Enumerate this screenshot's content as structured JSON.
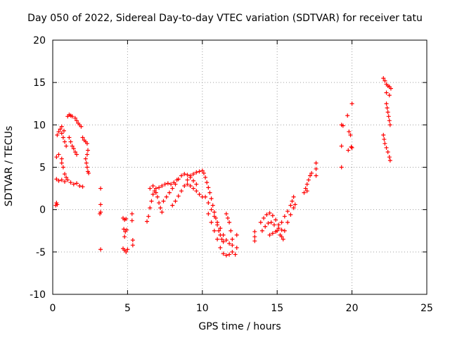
{
  "chart_data": {
    "type": "scatter",
    "title": "Day 050 of 2022, Sidereal Day-to-day VTEC variation (SDTVAR) for receiver tatu",
    "xlabel": "GPS time / hours",
    "ylabel": "SDTVAR / TECUs",
    "xlim": [
      0,
      25
    ],
    "ylim": [
      -10,
      20
    ],
    "xticks": [
      0,
      5,
      10,
      15,
      20,
      25
    ],
    "yticks": [
      -10,
      -5,
      0,
      5,
      10,
      15,
      20
    ],
    "grid": true,
    "marker": "plus",
    "color": "#ff0000",
    "series": [
      {
        "name": "SDTVAR",
        "points": [
          [
            0.2,
            0.5
          ],
          [
            0.25,
            0.8
          ],
          [
            0.3,
            0.6
          ],
          [
            0.25,
            3.6
          ],
          [
            0.4,
            3.4
          ],
          [
            0.6,
            3.5
          ],
          [
            0.8,
            3.3
          ],
          [
            1.0,
            3.5
          ],
          [
            1.2,
            3.2
          ],
          [
            1.4,
            3.0
          ],
          [
            1.6,
            3.1
          ],
          [
            1.8,
            2.8
          ],
          [
            2.0,
            2.7
          ],
          [
            0.25,
            6.2
          ],
          [
            0.4,
            6.5
          ],
          [
            0.6,
            5.5
          ],
          [
            0.7,
            5.0
          ],
          [
            0.8,
            4.2
          ],
          [
            0.9,
            3.8
          ],
          [
            0.6,
            6.0
          ],
          [
            0.3,
            8.8
          ],
          [
            0.4,
            9.2
          ],
          [
            0.5,
            9.5
          ],
          [
            0.6,
            9.0
          ],
          [
            0.7,
            8.5
          ],
          [
            0.8,
            8.0
          ],
          [
            0.9,
            7.5
          ],
          [
            0.6,
            9.8
          ],
          [
            0.75,
            9.3
          ],
          [
            1.0,
            11.0
          ],
          [
            1.1,
            11.2
          ],
          [
            1.2,
            11.1
          ],
          [
            1.3,
            11.0
          ],
          [
            1.5,
            10.8
          ],
          [
            1.6,
            10.5
          ],
          [
            1.7,
            10.2
          ],
          [
            1.8,
            10.0
          ],
          [
            1.9,
            9.8
          ],
          [
            1.1,
            8.5
          ],
          [
            1.2,
            8.0
          ],
          [
            1.3,
            7.5
          ],
          [
            1.4,
            7.2
          ],
          [
            1.5,
            6.8
          ],
          [
            1.6,
            6.5
          ],
          [
            2.0,
            8.5
          ],
          [
            2.1,
            8.2
          ],
          [
            2.2,
            8.0
          ],
          [
            2.3,
            7.8
          ],
          [
            2.35,
            7.0
          ],
          [
            2.3,
            6.5
          ],
          [
            2.2,
            6.0
          ],
          [
            2.25,
            5.5
          ],
          [
            2.3,
            5.0
          ],
          [
            2.35,
            4.5
          ],
          [
            2.4,
            4.3
          ],
          [
            3.2,
            2.5
          ],
          [
            3.2,
            0.6
          ],
          [
            3.2,
            -0.3
          ],
          [
            3.15,
            -0.5
          ],
          [
            3.2,
            -4.7
          ],
          [
            4.7,
            -1.0
          ],
          [
            4.8,
            -1.2
          ],
          [
            4.9,
            -1.1
          ],
          [
            4.75,
            -2.3
          ],
          [
            4.85,
            -2.6
          ],
          [
            4.95,
            -2.4
          ],
          [
            4.8,
            -3.2
          ],
          [
            4.7,
            -4.6
          ],
          [
            4.8,
            -4.8
          ],
          [
            4.9,
            -5.0
          ],
          [
            5.0,
            -4.7
          ],
          [
            5.3,
            -0.5
          ],
          [
            5.3,
            -1.3
          ],
          [
            5.35,
            -3.6
          ],
          [
            5.35,
            -4.2
          ],
          [
            6.3,
            -1.4
          ],
          [
            6.4,
            -0.8
          ],
          [
            6.5,
            0.2
          ],
          [
            6.6,
            1.0
          ],
          [
            6.7,
            1.8
          ],
          [
            6.8,
            2.2
          ],
          [
            6.9,
            2.0
          ],
          [
            7.0,
            1.5
          ],
          [
            7.1,
            0.8
          ],
          [
            7.2,
            0.2
          ],
          [
            7.3,
            -0.3
          ],
          [
            6.5,
            2.5
          ],
          [
            6.7,
            2.8
          ],
          [
            6.9,
            2.5
          ],
          [
            7.1,
            2.6
          ],
          [
            7.3,
            2.8
          ],
          [
            7.5,
            3.0
          ],
          [
            7.7,
            3.1
          ],
          [
            7.9,
            3.0
          ],
          [
            8.1,
            3.2
          ],
          [
            8.3,
            3.5
          ],
          [
            7.4,
            1.0
          ],
          [
            7.6,
            1.5
          ],
          [
            7.8,
            2.0
          ],
          [
            8.0,
            2.5
          ],
          [
            8.2,
            3.0
          ],
          [
            8.4,
            3.6
          ],
          [
            8.6,
            4.0
          ],
          [
            8.8,
            4.2
          ],
          [
            9.0,
            4.1
          ],
          [
            9.2,
            3.8
          ],
          [
            9.4,
            3.4
          ],
          [
            9.6,
            3.0
          ],
          [
            8.0,
            0.5
          ],
          [
            8.2,
            1.0
          ],
          [
            8.4,
            1.6
          ],
          [
            8.6,
            2.2
          ],
          [
            8.8,
            2.8
          ],
          [
            9.0,
            3.0
          ],
          [
            9.2,
            2.8
          ],
          [
            9.4,
            2.5
          ],
          [
            9.6,
            2.2
          ],
          [
            9.8,
            1.8
          ],
          [
            10.0,
            1.5
          ],
          [
            9.0,
            3.5
          ],
          [
            9.2,
            4.0
          ],
          [
            9.4,
            4.2
          ],
          [
            9.6,
            4.4
          ],
          [
            9.8,
            4.5
          ],
          [
            10.0,
            4.6
          ],
          [
            10.1,
            4.3
          ],
          [
            10.2,
            3.8
          ],
          [
            10.3,
            3.2
          ],
          [
            10.4,
            2.6
          ],
          [
            10.5,
            2.0
          ],
          [
            10.6,
            1.3
          ],
          [
            10.7,
            0.5
          ],
          [
            10.8,
            -0.3
          ],
          [
            10.9,
            -1.0
          ],
          [
            11.0,
            -1.8
          ],
          [
            11.1,
            -2.5
          ],
          [
            11.2,
            -3.0
          ],
          [
            11.3,
            -3.5
          ],
          [
            11.4,
            -3.8
          ],
          [
            10.2,
            1.5
          ],
          [
            10.4,
            0.8
          ],
          [
            10.6,
            0.0
          ],
          [
            10.8,
            -0.8
          ],
          [
            11.0,
            -1.5
          ],
          [
            11.2,
            -2.2
          ],
          [
            11.4,
            -3.0
          ],
          [
            11.6,
            -3.6
          ],
          [
            11.8,
            -4.0
          ],
          [
            12.0,
            -4.2
          ],
          [
            10.4,
            -0.5
          ],
          [
            10.6,
            -1.5
          ],
          [
            10.8,
            -2.5
          ],
          [
            11.0,
            -3.5
          ],
          [
            11.2,
            -4.5
          ],
          [
            11.4,
            -5.2
          ],
          [
            11.6,
            -5.4
          ],
          [
            11.8,
            -5.3
          ],
          [
            12.0,
            -5.0
          ],
          [
            11.7,
            -1.0
          ],
          [
            11.8,
            -1.5
          ],
          [
            11.9,
            -2.5
          ],
          [
            12.0,
            -3.5
          ],
          [
            11.6,
            -0.5
          ],
          [
            12.3,
            -3.0
          ],
          [
            12.3,
            -4.5
          ],
          [
            12.2,
            -5.3
          ],
          [
            13.5,
            -2.6
          ],
          [
            13.5,
            -3.2
          ],
          [
            13.5,
            -3.7
          ],
          [
            13.9,
            -1.5
          ],
          [
            14.1,
            -1.0
          ],
          [
            14.3,
            -0.6
          ],
          [
            14.5,
            -0.4
          ],
          [
            14.7,
            -0.7
          ],
          [
            14.9,
            -1.2
          ],
          [
            15.1,
            -1.8
          ],
          [
            15.3,
            -2.4
          ],
          [
            14.0,
            -2.5
          ],
          [
            14.2,
            -2.0
          ],
          [
            14.4,
            -1.6
          ],
          [
            14.6,
            -1.5
          ],
          [
            14.8,
            -1.8
          ],
          [
            15.0,
            -2.5
          ],
          [
            15.2,
            -3.0
          ],
          [
            15.4,
            -3.5
          ],
          [
            14.5,
            -3.0
          ],
          [
            14.7,
            -2.8
          ],
          [
            14.9,
            -2.6
          ],
          [
            15.1,
            -2.2
          ],
          [
            15.3,
            -1.5
          ],
          [
            15.5,
            -0.8
          ],
          [
            15.7,
            -0.2
          ],
          [
            15.9,
            0.5
          ],
          [
            16.0,
            1.0
          ],
          [
            16.1,
            1.5
          ],
          [
            15.3,
            -3.2
          ],
          [
            15.5,
            -2.5
          ],
          [
            15.7,
            -1.5
          ],
          [
            15.9,
            -0.6
          ],
          [
            16.1,
            0.2
          ],
          [
            16.2,
            0.6
          ],
          [
            16.8,
            2.0
          ],
          [
            16.9,
            2.5
          ],
          [
            17.0,
            3.0
          ],
          [
            17.1,
            3.5
          ],
          [
            17.2,
            4.0
          ],
          [
            17.3,
            4.3
          ],
          [
            17.0,
            2.2
          ],
          [
            17.6,
            4.8
          ],
          [
            17.6,
            5.5
          ],
          [
            17.6,
            4.0
          ],
          [
            19.3,
            10.0
          ],
          [
            19.4,
            9.9
          ],
          [
            19.3,
            7.5
          ],
          [
            19.3,
            5.0
          ],
          [
            19.7,
            11.1
          ],
          [
            19.8,
            9.2
          ],
          [
            19.9,
            8.8
          ],
          [
            19.75,
            7.0
          ],
          [
            19.95,
            7.4
          ],
          [
            20.0,
            7.3
          ],
          [
            20.0,
            12.5
          ],
          [
            22.1,
            15.5
          ],
          [
            22.2,
            15.2
          ],
          [
            22.3,
            14.8
          ],
          [
            22.4,
            14.6
          ],
          [
            22.5,
            14.5
          ],
          [
            22.6,
            14.3
          ],
          [
            22.3,
            13.8
          ],
          [
            22.5,
            13.5
          ],
          [
            22.3,
            12.5
          ],
          [
            22.35,
            12.0
          ],
          [
            22.4,
            11.5
          ],
          [
            22.45,
            11.0
          ],
          [
            22.5,
            10.5
          ],
          [
            22.55,
            10.0
          ],
          [
            22.1,
            8.8
          ],
          [
            22.15,
            8.3
          ],
          [
            22.2,
            7.8
          ],
          [
            22.3,
            7.3
          ],
          [
            22.4,
            6.8
          ],
          [
            22.5,
            6.2
          ],
          [
            22.55,
            5.8
          ]
        ]
      }
    ]
  }
}
